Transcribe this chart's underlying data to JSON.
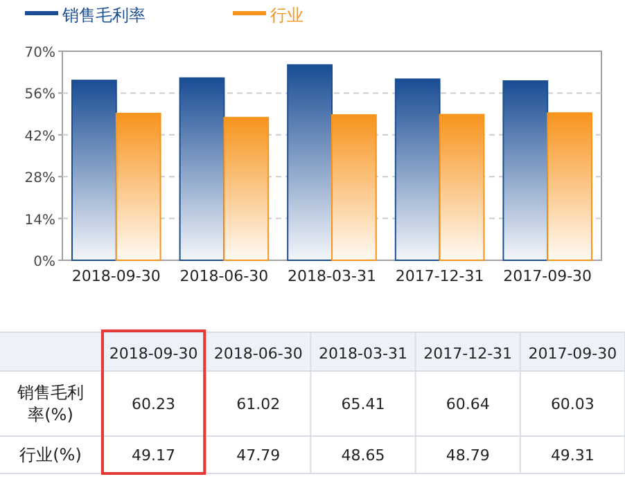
{
  "chart_data": {
    "type": "bar",
    "categories": [
      "2018-09-30",
      "2018-06-30",
      "2018-03-31",
      "2017-12-31",
      "2017-09-30"
    ],
    "series": [
      {
        "name": "销售毛利率",
        "color": "#1a4d94",
        "values": [
          60.23,
          61.02,
          65.41,
          60.64,
          60.03
        ]
      },
      {
        "name": "行业",
        "color": "#f7941d",
        "values": [
          49.17,
          47.79,
          48.65,
          48.79,
          49.31
        ]
      }
    ],
    "ylim": [
      0,
      70
    ],
    "yticks": [
      {
        "value": 0,
        "label": "0%"
      },
      {
        "value": 14,
        "label": "14%"
      },
      {
        "value": 28,
        "label": "28%"
      },
      {
        "value": 42,
        "label": "42%"
      },
      {
        "value": 56,
        "label": "56%"
      },
      {
        "value": 70,
        "label": "70%"
      }
    ],
    "grid": "y",
    "legend": "top left",
    "data_labels": true,
    "annotations": [
      "销售毛利率(%)",
      "行业(%)"
    ]
  }
}
